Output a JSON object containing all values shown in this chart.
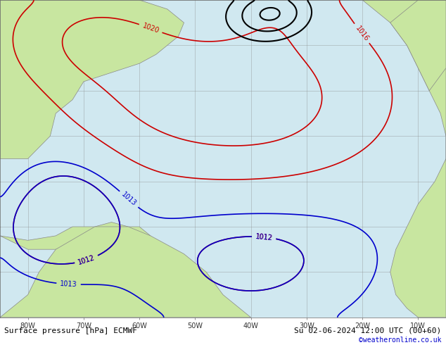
{
  "title_left": "Surface pressure [hPa] ECMWF",
  "title_right": "Su 02-06-2024 12:00 UTC (00+60)",
  "copyright": "©weatheronline.co.uk",
  "bg_color": "#d0e8f0",
  "land_color": "#c8e6a0",
  "land_dark_color": "#a0c870",
  "grid_color": "#888888",
  "grid_alpha": 0.5,
  "isobar_color_red": "#cc0000",
  "isobar_color_black": "#000000",
  "isobar_color_blue": "#0000cc",
  "axis_label_color": "#333333",
  "bottom_bar_color": "#e8e8e8",
  "bottom_text_color": "#000000",
  "copyright_color": "#0000cc",
  "figsize": [
    6.34,
    4.9
  ],
  "dpi": 100,
  "xlim": [
    -85,
    -5
  ],
  "ylim": [
    -10,
    60
  ],
  "xticks": [
    -80,
    -70,
    -60,
    -50,
    -40,
    -30,
    -20,
    -10
  ],
  "yticks": [
    0,
    10,
    20,
    30,
    40,
    50,
    60
  ],
  "xlabel_labels": [
    "80W",
    "70W",
    "60W",
    "50W",
    "40W",
    "30W",
    "20W",
    "10W"
  ],
  "ylabel_labels": []
}
